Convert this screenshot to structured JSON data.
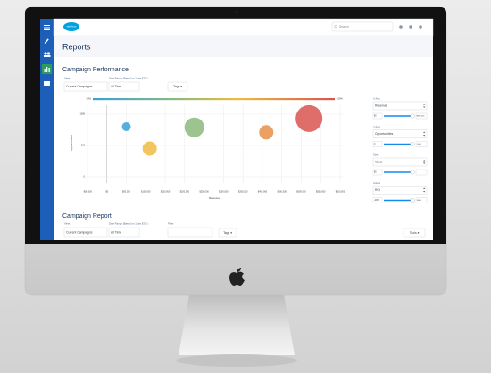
{
  "top_bar": {
    "logo": "salesforce",
    "search_placeholder": "Search"
  },
  "page_title": "Reports",
  "performance": {
    "title": "Campaign Performance",
    "view_label": "View:",
    "view_value": "Current Campaigns",
    "date_label": "Date Range (Based on 12am EST):",
    "date_value": "All Time",
    "tags_button": "Tags ▾"
  },
  "chart_data": {
    "type": "bubble",
    "x_label": "Revenue",
    "y_label": "Opportunities",
    "color_scale_labels": [
      "-20%",
      "100%"
    ],
    "x": [
      50000,
      110000,
      225000,
      410000,
      520000
    ],
    "values": [
      800,
      450,
      790,
      710,
      930
    ],
    "sizes": [
      5,
      8,
      11,
      8,
      15
    ],
    "colors": [
      "#3aa0d8",
      "#eebb44",
      "#8cba7c",
      "#e8914a",
      "#d9534f"
    ],
    "xlim": [
      -50000,
      600000
    ],
    "xticks": [
      {
        "value": -50000,
        "label": "-$50,000"
      },
      {
        "value": 0,
        "label": "$0"
      },
      {
        "value": 50000,
        "label": "$50,000"
      },
      {
        "value": 100000,
        "label": "$100,000"
      },
      {
        "value": 150000,
        "label": "$150,000"
      },
      {
        "value": 200000,
        "label": "$200,000"
      },
      {
        "value": 250000,
        "label": "$250,000"
      },
      {
        "value": 300000,
        "label": "$300,000"
      },
      {
        "value": 350000,
        "label": "$350,000"
      },
      {
        "value": 400000,
        "label": "$400,000"
      },
      {
        "value": 450000,
        "label": "$450,000"
      },
      {
        "value": 500000,
        "label": "$500,000"
      },
      {
        "value": 550000,
        "label": "$550,000"
      },
      {
        "value": 600000,
        "label": "$600,000"
      }
    ],
    "ylim": [
      0,
      1000
    ],
    "yticks": [
      0,
      500,
      1000
    ],
    "grid": true
  },
  "controls": [
    {
      "label": "X Axis",
      "select": "Revenue",
      "min": "$0",
      "max": "$999,000"
    },
    {
      "label": "Y Axis",
      "select": "Opportunities",
      "min": "0",
      "max": "1,000"
    },
    {
      "label": "Size",
      "select": "Value",
      "min": "$0"
    },
    {
      "label": "Colors",
      "select": "ROI",
      "min": "-20%",
      "max": "100%"
    }
  ],
  "report": {
    "title": "Campaign Report",
    "view_label": "View:",
    "view_value": "Current Campaigns",
    "date_label": "Date Range (Based on 12am EST):",
    "date_value": "All Time",
    "filter_label": "Filter:",
    "tags_button": "Tags ▾",
    "tools_button": "Tools ▾"
  }
}
